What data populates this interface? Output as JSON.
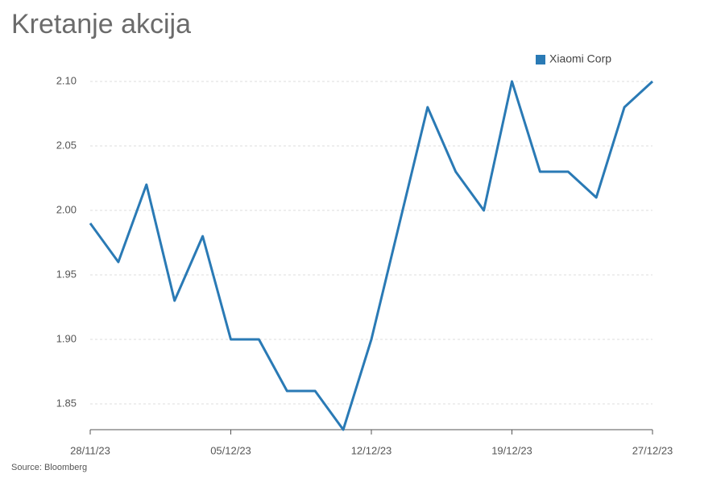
{
  "chart_data": {
    "type": "line",
    "title": "Kretanje akcija",
    "source": "Source: Bloomberg",
    "categories": [
      "28/11/23",
      null,
      null,
      null,
      null,
      "05/12/23",
      null,
      null,
      null,
      null,
      "12/12/23",
      null,
      null,
      null,
      null,
      "19/12/23",
      null,
      null,
      null,
      null,
      "27/12/23"
    ],
    "series": [
      {
        "name": "Xiaomi Corp",
        "color": "#2a7ab5",
        "values": [
          1.99,
          1.96,
          2.02,
          1.93,
          1.98,
          1.9,
          1.9,
          1.86,
          1.86,
          1.83,
          1.9,
          1.99,
          2.08,
          2.03,
          2.0,
          2.1,
          2.03,
          2.03,
          2.01,
          2.08,
          2.1
        ]
      }
    ],
    "ylim": [
      1.83,
      2.1
    ],
    "yticks": [
      1.85,
      {
        "value": 1.9,
        "label": "1.90"
      },
      1.95,
      {
        "value": 2.0,
        "label": "2.00"
      },
      2.05,
      {
        "value": 2.1,
        "label": "2.10"
      }
    ],
    "grid": true
  }
}
